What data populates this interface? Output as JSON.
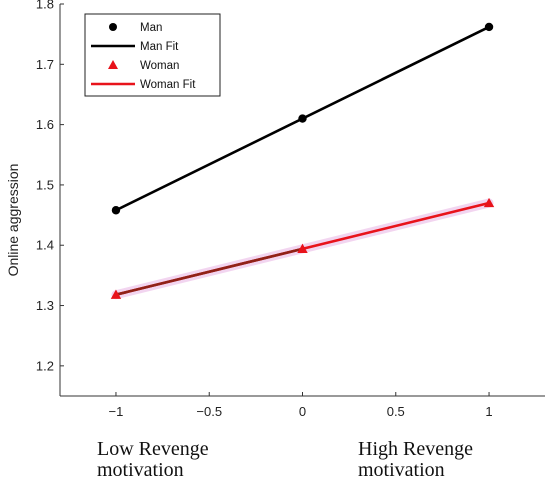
{
  "chart_data": {
    "type": "line",
    "x": [
      -1,
      0,
      1
    ],
    "ylabel": "Online aggression",
    "xlim": [
      -1.3,
      1.3
    ],
    "ylim": [
      1.15,
      1.8
    ],
    "xticks": [
      "−1",
      "−0.5",
      "0",
      "0.5",
      "1"
    ],
    "xtick_values": [
      -1,
      -0.5,
      0,
      0.5,
      1
    ],
    "yticks": [
      "1.2",
      "1.3",
      "1.4",
      "1.5",
      "1.6",
      "1.7",
      "1.8"
    ],
    "ytick_values": [
      1.2,
      1.3,
      1.4,
      1.5,
      1.6,
      1.7,
      1.8
    ],
    "legend_position": "top-left",
    "series": [
      {
        "name": "Man",
        "fit_name": "Man Fit",
        "values": [
          1.458,
          1.61,
          1.762
        ],
        "color": "#000000",
        "marker": "circle"
      },
      {
        "name": "Woman",
        "fit_name": "Woman Fit",
        "values": [
          1.318,
          1.394,
          1.47
        ],
        "color": "#e8131b",
        "marker": "triangle"
      }
    ],
    "x_captions": {
      "low": [
        "Low Revenge",
        "motivation"
      ],
      "high": [
        "High Revenge",
        "motivation"
      ]
    },
    "grid": false
  }
}
